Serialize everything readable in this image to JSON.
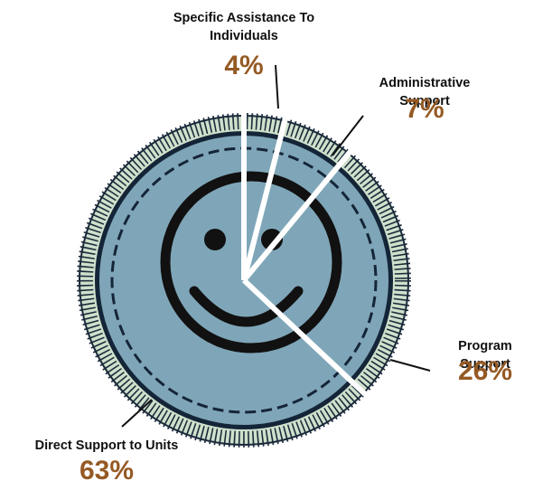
{
  "chart_data": {
    "type": "pie",
    "categories": [
      "Specific Assistance To Individuals",
      "Administrative Support",
      "Program Support",
      "Direct Support to Units"
    ],
    "values": [
      4,
      7,
      26,
      63
    ],
    "value_labels": [
      "4%",
      "7%",
      "26%",
      "63%"
    ],
    "color": "#7fa6b8"
  }
}
